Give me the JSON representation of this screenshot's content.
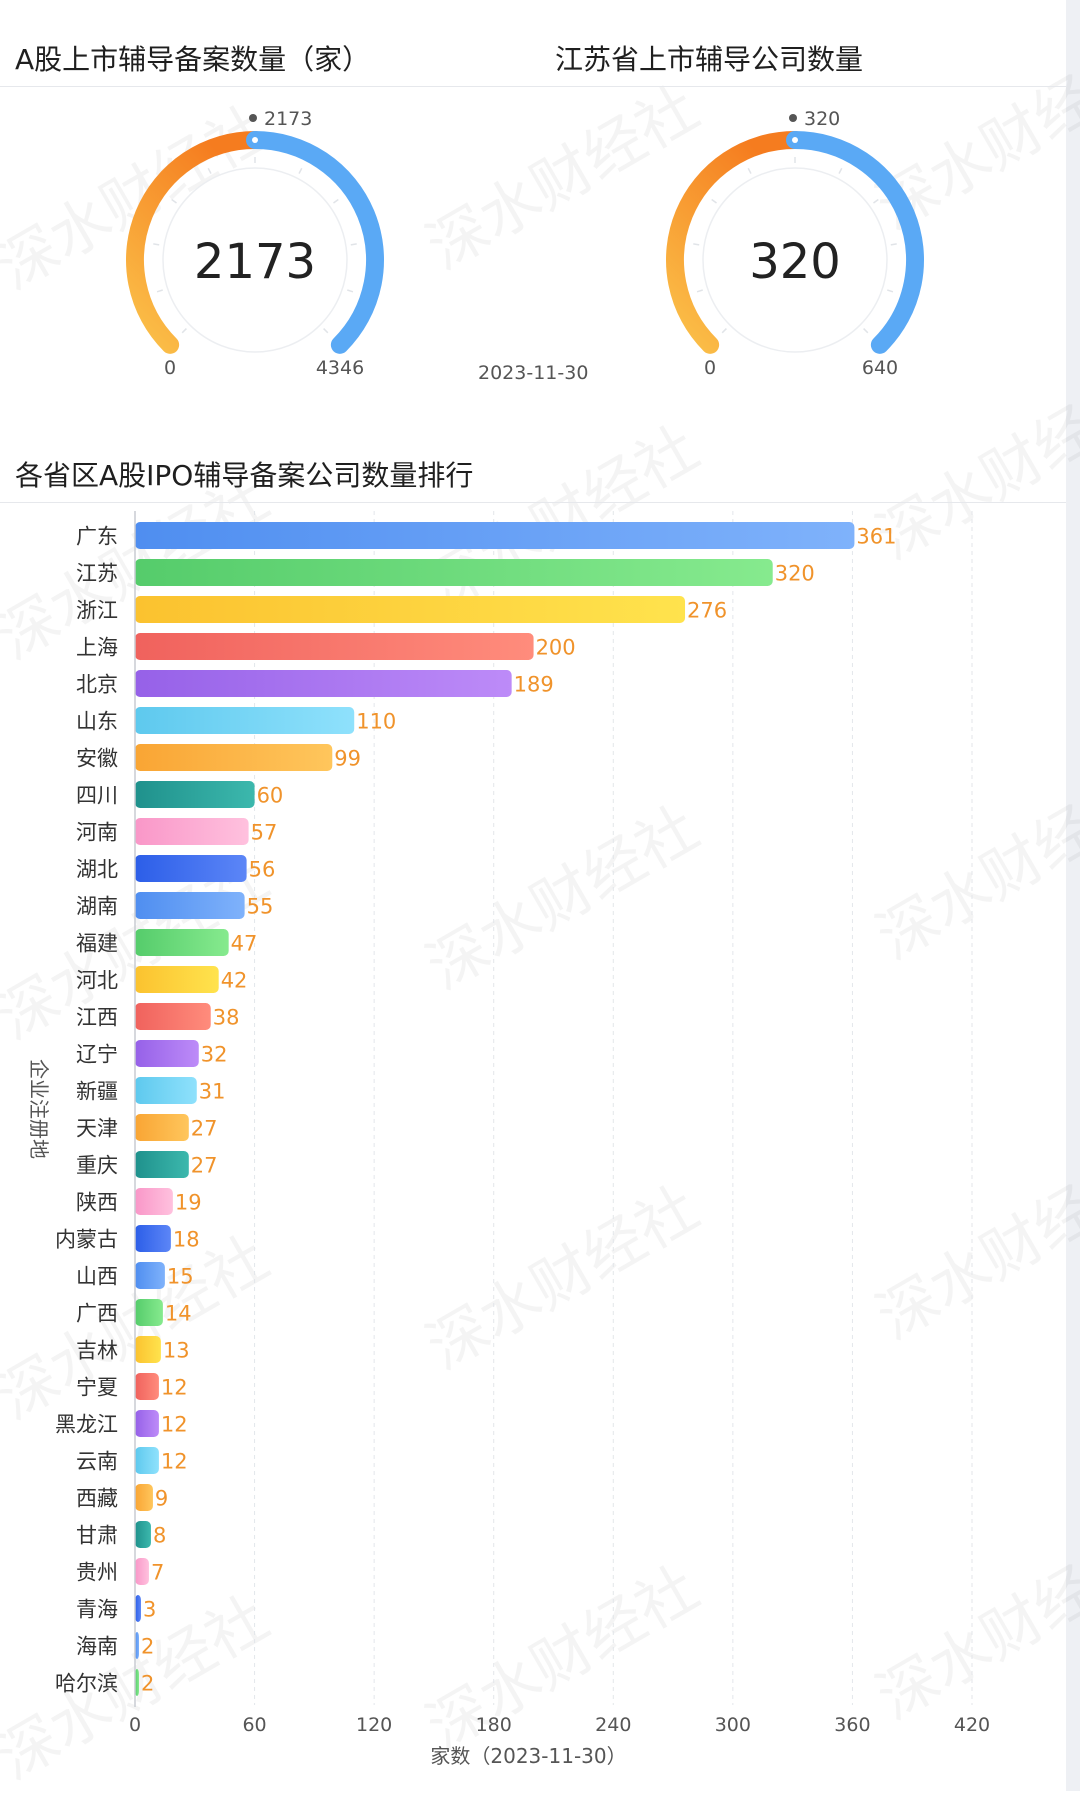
{
  "gauges": [
    {
      "title": "A股上市辅导备案数量（家）",
      "value": 2173,
      "value_label": "2173",
      "min_label": "0",
      "max": 4346,
      "max_label": "4346"
    },
    {
      "title": "江苏省上市辅导公司数量",
      "value": 320,
      "value_label": "320",
      "min_label": "0",
      "max": 640,
      "max_label": "640"
    }
  ],
  "gauge_date": "2023-11-30",
  "ranking_title": "各省区A股IPO辅导备案公司数量排行",
  "watermark": "深水财经社",
  "colors": {
    "gauge_orange": "#f57c1f",
    "gauge_yellow": "#fbc24a",
    "gauge_blue": "#5aa9f5",
    "bar_label": "#f0932b",
    "palette": [
      [
        "#4f8ef0",
        "#7fb2fb"
      ],
      [
        "#55cc6b",
        "#86ea8e"
      ],
      [
        "#fbc22f",
        "#ffe34d"
      ],
      [
        "#f0625d",
        "#ff8c7c"
      ],
      [
        "#9661e8",
        "#bd8bf8"
      ],
      [
        "#5ec9ee",
        "#8fe1fc"
      ],
      [
        "#f9a534",
        "#ffc65c"
      ],
      [
        "#1f918c",
        "#3cb8ad"
      ],
      [
        "#f997c8",
        "#ffc1de"
      ],
      [
        "#2c5ee8",
        "#5c86f7"
      ]
    ]
  },
  "chart_data": {
    "type": "bar",
    "orientation": "horizontal",
    "categories": [
      "广东",
      "江苏",
      "浙江",
      "上海",
      "北京",
      "山东",
      "安徽",
      "四川",
      "河南",
      "湖北",
      "湖南",
      "福建",
      "河北",
      "江西",
      "辽宁",
      "新疆",
      "天津",
      "重庆",
      "陕西",
      "内蒙古",
      "山西",
      "广西",
      "吉林",
      "宁夏",
      "黑龙江",
      "云南",
      "西藏",
      "甘肃",
      "贵州",
      "青海",
      "海南",
      "哈尔滨"
    ],
    "values": [
      361,
      320,
      276,
      200,
      189,
      110,
      99,
      60,
      57,
      56,
      55,
      47,
      42,
      38,
      32,
      31,
      27,
      27,
      19,
      18,
      15,
      14,
      13,
      12,
      12,
      12,
      9,
      8,
      7,
      3,
      2,
      2
    ],
    "xlabel": "家数（2023-11-30）",
    "ylabel": "企业注册地",
    "xlim": [
      0,
      420
    ],
    "xticks": [
      0,
      60,
      120,
      180,
      240,
      300,
      360,
      420
    ],
    "grid": true
  }
}
